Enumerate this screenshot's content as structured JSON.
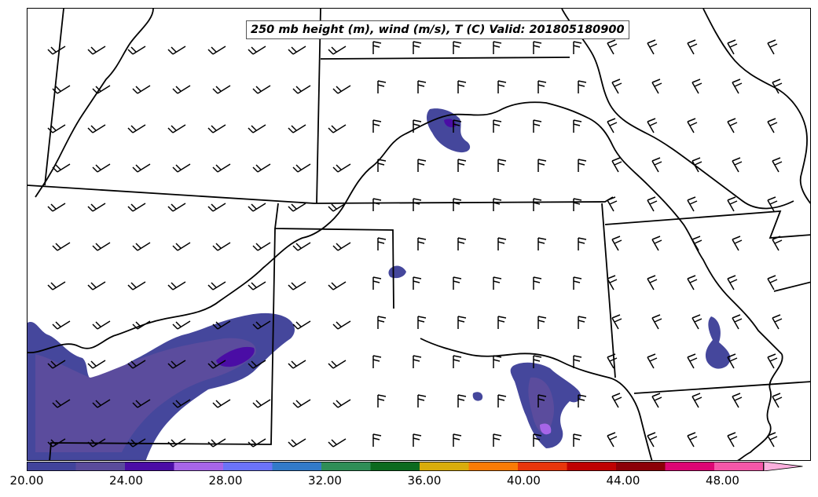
{
  "title": "250 mb height (m), wind (m/s), T (C) Valid: 201805180900",
  "colorbar": {
    "colors": [
      "#41439b",
      "#5a4b9c",
      "#4b0ca6",
      "#a765e8",
      "#6b73f8",
      "#327ac9",
      "#2f8e57",
      "#0c6a1f",
      "#d9ac0b",
      "#fa7b05",
      "#e8360b",
      "#bf0102",
      "#8b0008",
      "#dd0674",
      "#f557a8",
      "#fbb0de"
    ],
    "tick_labels": [
      "20.00",
      "24.00",
      "28.00",
      "32.00",
      "36.00",
      "40.00",
      "44.00",
      "48.00"
    ],
    "range": [
      20,
      52
    ]
  }
}
